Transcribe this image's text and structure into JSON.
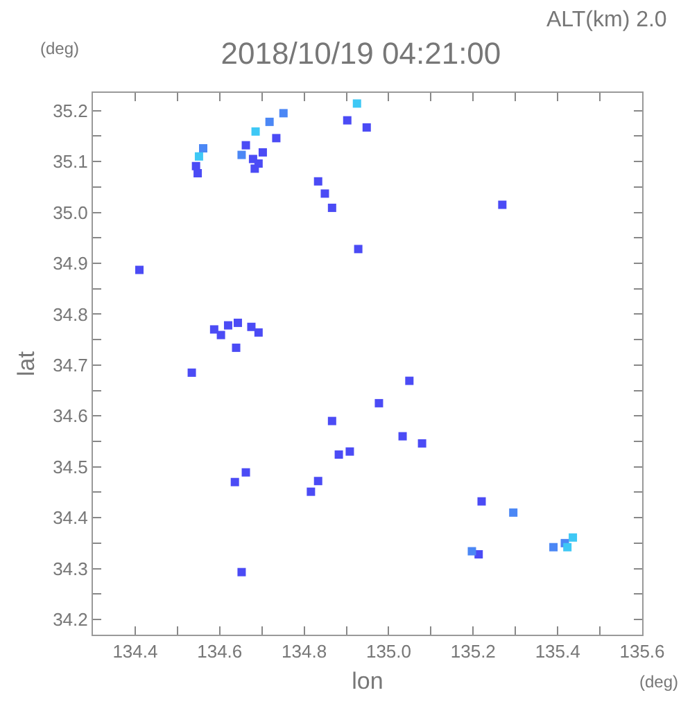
{
  "chart_data": {
    "type": "scatter",
    "title": "2018/10/19 04:21:00",
    "xlabel": "lon",
    "ylabel": "lat",
    "annotations": [
      "ALT(km) 2.0",
      "(deg)",
      "(deg)"
    ],
    "marker": "square",
    "grid": false,
    "xlim": [
      134.3,
      135.6
    ],
    "ylim": [
      34.17,
      35.235
    ],
    "xticks": [
      {
        "value": 134.3,
        "label": null
      },
      134.4,
      {
        "value": 134.5,
        "label": null
      },
      134.6,
      {
        "value": 134.7,
        "label": null
      },
      134.8,
      {
        "value": 134.9,
        "label": null
      },
      {
        "value": 135,
        "label": "135.0"
      },
      {
        "value": 135.1,
        "label": null
      },
      135.2,
      {
        "value": 135.3,
        "label": null
      },
      135.4,
      {
        "value": 135.5,
        "label": null
      },
      135.6
    ],
    "yticks": [
      34.2,
      {
        "value": 34.25,
        "label": null
      },
      34.3,
      {
        "value": 34.35,
        "label": null
      },
      34.4,
      {
        "value": 34.45,
        "label": null
      },
      34.5,
      {
        "value": 34.55,
        "label": null
      },
      34.6,
      {
        "value": 34.65,
        "label": null
      },
      34.7,
      {
        "value": 34.75,
        "label": null
      },
      34.8,
      {
        "value": 34.85,
        "label": null
      },
      34.9,
      {
        "value": 34.95,
        "label": null
      },
      {
        "value": 35,
        "label": "35.0"
      },
      {
        "value": 35.05,
        "label": null
      },
      35.1,
      {
        "value": 35.15,
        "label": null
      },
      35.2
    ],
    "series": [
      {
        "color": "#4b4bf5",
        "x": [
          134.548,
          134.544,
          134.679,
          134.692,
          134.683,
          134.662,
          134.702,
          134.734,
          134.902,
          134.948,
          134.833,
          134.849,
          134.866,
          134.928,
          134.41,
          134.587,
          134.62,
          134.643,
          134.675,
          134.692,
          134.603,
          134.639,
          134.534,
          135.049,
          134.977,
          134.866,
          135.033,
          135.079,
          134.882,
          134.908,
          134.662,
          134.636,
          134.816,
          134.833,
          135.22,
          135.213,
          134.652,
          135.269
        ],
        "values": [
          35.077,
          35.091,
          35.105,
          35.096,
          35.086,
          35.132,
          35.118,
          35.146,
          35.181,
          35.167,
          35.061,
          35.037,
          35.009,
          34.928,
          34.887,
          34.77,
          34.778,
          34.783,
          34.775,
          34.764,
          34.759,
          34.734,
          34.685,
          34.669,
          34.625,
          34.59,
          34.56,
          34.546,
          34.524,
          34.53,
          34.489,
          34.47,
          34.451,
          34.472,
          34.432,
          34.328,
          34.293,
          35.015
        ]
      },
      {
        "color": "#4b87f5",
        "x": [
          134.561,
          134.751,
          134.718,
          134.652,
          135.197,
          135.295,
          135.39,
          135.417
        ],
        "values": [
          35.126,
          35.195,
          35.178,
          35.113,
          34.334,
          34.41,
          34.342,
          34.35
        ]
      },
      {
        "color": "#3ec8f5",
        "x": [
          134.551,
          134.685,
          134.925,
          135.423,
          135.436
        ],
        "values": [
          35.11,
          35.159,
          35.214,
          34.342,
          34.361
        ]
      }
    ]
  }
}
